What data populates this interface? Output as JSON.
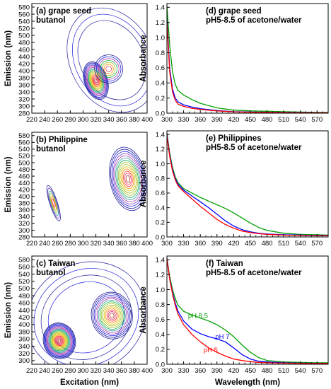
{
  "chart_data": [
    {
      "type": "contour",
      "panel": "a",
      "title_lines": [
        "(a) grape seed",
        "butanol"
      ],
      "xlabel": "",
      "ylabel": "Emission (nm)",
      "xlim": [
        220,
        400
      ],
      "ylim": [
        280,
        590
      ],
      "xticks": [
        220,
        240,
        260,
        280,
        300,
        320,
        340,
        360,
        380,
        400
      ],
      "yticks": [
        280,
        300,
        320,
        340,
        360,
        380,
        400,
        420,
        440,
        460,
        480,
        500,
        520,
        540,
        560,
        580
      ],
      "peaks": [
        {
          "excitation": 320,
          "emission": 372,
          "rx": 18,
          "ry": 55,
          "rings": 16
        },
        {
          "excitation": 340,
          "emission": 405,
          "rx": 22,
          "ry": 40,
          "rings": 7
        }
      ],
      "envelope": {
        "excitation": 345,
        "emission": 430,
        "rx": 65,
        "ry": 155,
        "rings": 3
      }
    },
    {
      "type": "contour",
      "panel": "b",
      "title_lines": [
        "(b) Philippine",
        "butanol"
      ],
      "xlabel": "",
      "ylabel": "Emission (nm)",
      "xlim": [
        220,
        400
      ],
      "ylim": [
        280,
        590
      ],
      "xticks": [
        220,
        240,
        260,
        280,
        300,
        320,
        340,
        360,
        380,
        400
      ],
      "yticks": [
        280,
        300,
        320,
        340,
        360,
        380,
        400,
        420,
        440,
        460,
        480,
        500,
        520,
        540,
        560,
        580
      ],
      "peaks": [
        {
          "excitation": 254,
          "emission": 380,
          "rx": 6,
          "ry": 55,
          "rings": 6
        },
        {
          "excitation": 370,
          "emission": 452,
          "rx": 28,
          "ry": 95,
          "rings": 14
        }
      ],
      "envelope": null
    },
    {
      "type": "contour",
      "panel": "c",
      "title_lines": [
        "(c) Taiwan",
        "butanol"
      ],
      "xlabel": "Excitation (nm)",
      "ylabel": "Emission (nm)",
      "xlim": [
        220,
        400
      ],
      "ylim": [
        290,
        590
      ],
      "xticks": [
        220,
        240,
        260,
        280,
        300,
        320,
        340,
        360,
        380,
        400
      ],
      "yticks": [
        300,
        320,
        340,
        360,
        380,
        400,
        420,
        440,
        460,
        480,
        500,
        520,
        540,
        560,
        580
      ],
      "peaks": [
        {
          "excitation": 263,
          "emission": 355,
          "rx": 25,
          "ry": 50,
          "rings": 20
        },
        {
          "excitation": 345,
          "emission": 425,
          "rx": 32,
          "ry": 65,
          "rings": 14
        }
      ],
      "envelope": {
        "excitation": 305,
        "emission": 420,
        "rx": 95,
        "ry": 150,
        "rings": 4
      }
    },
    {
      "type": "line",
      "panel": "d",
      "title_lines": [
        "(d) grape seed",
        "pH5-8.5 of acetone/water"
      ],
      "xlabel": "",
      "ylabel": "Absorbance",
      "xlim": [
        300,
        590
      ],
      "ylim": [
        0,
        1.45
      ],
      "xticks": [
        300,
        330,
        360,
        390,
        420,
        450,
        480,
        510,
        540,
        570
      ],
      "yticks": [
        0.0,
        0.2,
        0.4,
        0.6,
        0.8,
        1.0,
        1.2,
        1.4
      ],
      "series": [
        {
          "color": "#00a000",
          "x": [
            300,
            305,
            310,
            315,
            320,
            330,
            345,
            360,
            390,
            420,
            450,
            480,
            510,
            540,
            570,
            590
          ],
          "y": [
            1.42,
            0.9,
            0.55,
            0.38,
            0.3,
            0.24,
            0.18,
            0.13,
            0.07,
            0.04,
            0.03,
            0.025,
            0.02,
            0.015,
            0.01,
            0.01
          ]
        },
        {
          "color": "#0000ff",
          "x": [
            300,
            305,
            310,
            315,
            320,
            330,
            345,
            360,
            390,
            420,
            450,
            480,
            510,
            540,
            570,
            590
          ],
          "y": [
            1.25,
            0.6,
            0.32,
            0.2,
            0.15,
            0.11,
            0.08,
            0.06,
            0.035,
            0.02,
            0.015,
            0.012,
            0.01,
            0.008,
            0.006,
            0.005
          ]
        },
        {
          "color": "#ff0000",
          "x": [
            300,
            305,
            310,
            315,
            320,
            330,
            345,
            360,
            390,
            420,
            450,
            480,
            510,
            540,
            570,
            590
          ],
          "y": [
            1.2,
            0.55,
            0.28,
            0.17,
            0.12,
            0.09,
            0.065,
            0.05,
            0.03,
            0.018,
            0.012,
            0.01,
            0.008,
            0.006,
            0.005,
            0.005
          ]
        }
      ]
    },
    {
      "type": "line",
      "panel": "e",
      "title_lines": [
        "(e) Philippines",
        "pH5-8.5 of acetone/water"
      ],
      "xlabel": "",
      "ylabel": "Absorbance",
      "xlim": [
        300,
        590
      ],
      "ylim": [
        0,
        1.45
      ],
      "xticks": [
        300,
        330,
        360,
        390,
        420,
        450,
        480,
        510,
        540,
        570
      ],
      "yticks": [
        0.0,
        0.2,
        0.4,
        0.6,
        0.8,
        1.0,
        1.2,
        1.4
      ],
      "series": [
        {
          "color": "#00a000",
          "x": [
            300,
            305,
            310,
            315,
            320,
            330,
            345,
            360,
            375,
            390,
            405,
            420,
            435,
            450,
            465,
            480,
            510,
            540,
            570,
            590
          ],
          "y": [
            1.42,
            1.15,
            0.95,
            0.82,
            0.74,
            0.66,
            0.6,
            0.54,
            0.49,
            0.44,
            0.39,
            0.33,
            0.26,
            0.19,
            0.13,
            0.09,
            0.05,
            0.035,
            0.03,
            0.025
          ]
        },
        {
          "color": "#0000ff",
          "x": [
            300,
            305,
            310,
            315,
            320,
            330,
            345,
            360,
            375,
            390,
            405,
            420,
            435,
            450,
            465,
            480,
            510,
            540,
            570,
            590
          ],
          "y": [
            1.4,
            1.12,
            0.92,
            0.8,
            0.72,
            0.64,
            0.56,
            0.48,
            0.4,
            0.31,
            0.22,
            0.15,
            0.1,
            0.07,
            0.05,
            0.04,
            0.03,
            0.025,
            0.02,
            0.02
          ]
        },
        {
          "color": "#ff0000",
          "x": [
            300,
            305,
            310,
            315,
            320,
            330,
            345,
            360,
            375,
            390,
            405,
            420,
            435,
            450,
            465,
            480,
            510,
            540,
            570,
            590
          ],
          "y": [
            1.38,
            1.1,
            0.9,
            0.78,
            0.7,
            0.62,
            0.52,
            0.42,
            0.33,
            0.24,
            0.17,
            0.12,
            0.08,
            0.06,
            0.045,
            0.035,
            0.025,
            0.02,
            0.015,
            0.015
          ]
        }
      ]
    },
    {
      "type": "line",
      "panel": "f",
      "title_lines": [
        "(f) Taiwan",
        "pH5-8.5 of acetone/water"
      ],
      "xlabel": "Wavelength (nm)",
      "ylabel": "Absorbance",
      "xlim": [
        300,
        590
      ],
      "ylim": [
        0,
        1.45
      ],
      "xticks": [
        300,
        330,
        360,
        390,
        420,
        450,
        480,
        510,
        540,
        570
      ],
      "yticks": [
        0.0,
        0.2,
        0.4,
        0.6,
        0.8,
        1.0,
        1.2,
        1.4
      ],
      "series": [
        {
          "name": "pH 8.5",
          "color": "#00a000",
          "label_at": [
            338,
            0.62
          ],
          "x": [
            300,
            305,
            310,
            315,
            320,
            330,
            345,
            360,
            375,
            390,
            405,
            420,
            435,
            450,
            465,
            480,
            510,
            540,
            570,
            590
          ],
          "y": [
            1.42,
            1.18,
            1.0,
            0.88,
            0.79,
            0.71,
            0.66,
            0.62,
            0.58,
            0.53,
            0.46,
            0.37,
            0.26,
            0.16,
            0.09,
            0.05,
            0.03,
            0.025,
            0.02,
            0.02
          ]
        },
        {
          "name": "pH 7",
          "color": "#0000ff",
          "label_at": [
            387,
            0.34
          ],
          "x": [
            300,
            305,
            310,
            315,
            320,
            330,
            345,
            360,
            375,
            390,
            405,
            420,
            435,
            450,
            465,
            480,
            510,
            540,
            570,
            590
          ],
          "y": [
            1.42,
            1.15,
            0.96,
            0.82,
            0.71,
            0.58,
            0.47,
            0.41,
            0.37,
            0.34,
            0.3,
            0.22,
            0.13,
            0.07,
            0.04,
            0.03,
            0.02,
            0.015,
            0.012,
            0.01
          ]
        },
        {
          "name": "pH 5",
          "color": "#ff0000",
          "label_at": [
            366,
            0.16
          ],
          "x": [
            300,
            305,
            310,
            315,
            320,
            330,
            345,
            360,
            375,
            390,
            405,
            420,
            435,
            450,
            465,
            480,
            510,
            540,
            570,
            590
          ],
          "y": [
            1.42,
            1.14,
            0.94,
            0.79,
            0.67,
            0.53,
            0.4,
            0.3,
            0.22,
            0.16,
            0.11,
            0.07,
            0.05,
            0.035,
            0.025,
            0.02,
            0.015,
            0.012,
            0.01,
            0.01
          ]
        }
      ]
    }
  ],
  "colors": {
    "axis": "#000000",
    "contour_palette": [
      "#1c1c9c",
      "#2020e0",
      "#7a3fc0",
      "#b040b0",
      "#30a0a0",
      "#10b050",
      "#a0c020",
      "#e0c000",
      "#ff8c00",
      "#ff3030",
      "#e04070",
      "#b03020"
    ]
  }
}
